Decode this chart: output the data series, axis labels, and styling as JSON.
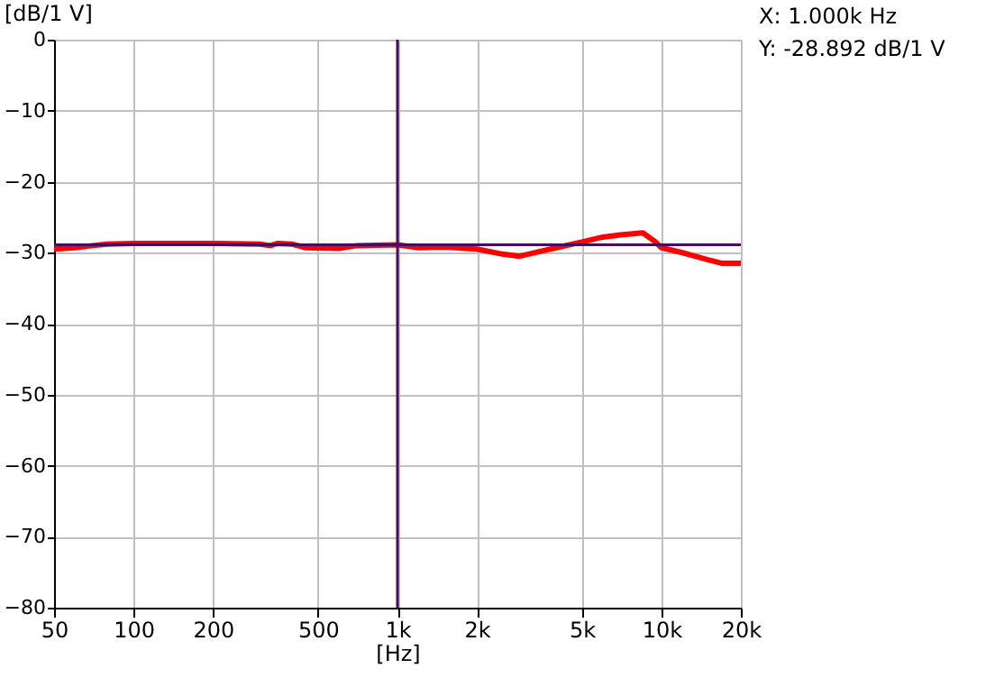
{
  "chart_data": {
    "type": "line",
    "xlabel": "[Hz]",
    "ylabel": "[dB/1 V]",
    "x": [
      50,
      60,
      70,
      80,
      100,
      200,
      300,
      330,
      350,
      400,
      450,
      600,
      700,
      1000,
      1200,
      1500,
      2000,
      2500,
      2900,
      3500,
      4000,
      5000,
      6000,
      7000,
      8500,
      9500,
      10000,
      12000,
      15000,
      17000,
      20000
    ],
    "series": [
      {
        "color": "#ff0000",
        "values": [
          -29.5,
          -29.3,
          -29.0,
          -28.8,
          -28.7,
          -28.7,
          -28.8,
          -29.0,
          -28.7,
          -28.8,
          -29.3,
          -29.4,
          -29.0,
          -28.9,
          -29.3,
          -29.2,
          -29.5,
          -30.2,
          -30.5,
          -29.8,
          -29.3,
          -28.5,
          -27.8,
          -27.5,
          -27.2,
          -28.5,
          -29.3,
          -30.0,
          -31.0,
          -31.5,
          -31.5
        ]
      }
    ],
    "log": "x",
    "xlim": [
      50,
      20000
    ],
    "ylim": [
      -80,
      0
    ],
    "xticks": [
      50,
      100,
      200,
      500,
      {
        "value": 1000,
        "label": "1k"
      },
      {
        "value": 2000,
        "label": "2k"
      },
      {
        "value": 5000,
        "label": "5k"
      },
      {
        "value": 10000,
        "label": "10k"
      },
      {
        "value": 20000,
        "label": "20k"
      }
    ],
    "yticks": [
      -80,
      -70,
      -60,
      -50,
      -40,
      -30,
      -20,
      -10,
      0
    ],
    "grid": true,
    "marker": "none",
    "line_style": "solid",
    "ref_lines": [
      {
        "axis": "x",
        "value": 1000,
        "color": "#4b0a5a"
      },
      {
        "axis": "y",
        "value": -28.892,
        "color": "#4b0a5a"
      }
    ],
    "annotations": [
      "X: 1.000k Hz",
      "Y: -28.892 dB/1 V"
    ]
  }
}
